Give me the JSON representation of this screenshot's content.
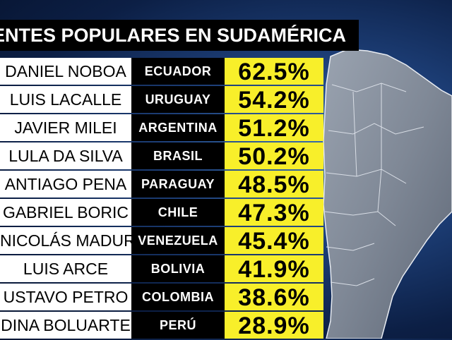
{
  "title": "IDENTES POPULARES EN SUDAMÉRICA",
  "rows": [
    {
      "name": "DANIEL NOBOA",
      "country": "ECUADOR",
      "pct": "62.5%"
    },
    {
      "name": "LUIS LACALLE",
      "country": "URUGUAY",
      "pct": "54.2%"
    },
    {
      "name": "JAVIER MILEI",
      "country": "ARGENTINA",
      "pct": "51.2%"
    },
    {
      "name": "LULA DA SILVA",
      "country": "BRASIL",
      "pct": "50.2%"
    },
    {
      "name": "ANTIAGO PENA",
      "country": "PARAGUAY",
      "pct": "48.5%"
    },
    {
      "name": "GABRIEL BORIC",
      "country": "CHILE",
      "pct": "47.3%"
    },
    {
      "name": "NICOLÁS MADURO",
      "country": "VENEZUELA",
      "pct": "45.4%"
    },
    {
      "name": "LUIS ARCE",
      "country": "BOLIVIA",
      "pct": "41.9%"
    },
    {
      "name": "USTAVO PETRO",
      "country": "COLOMBIA",
      "pct": "38.6%"
    },
    {
      "name": "DINA BOLUARTE",
      "country": "PERÚ",
      "pct": "28.9%"
    }
  ],
  "colors": {
    "name_bg": "#ffffff",
    "country_bg": "#000000",
    "pct_bg": "#f8ef2a",
    "background": "#1d3f78"
  }
}
